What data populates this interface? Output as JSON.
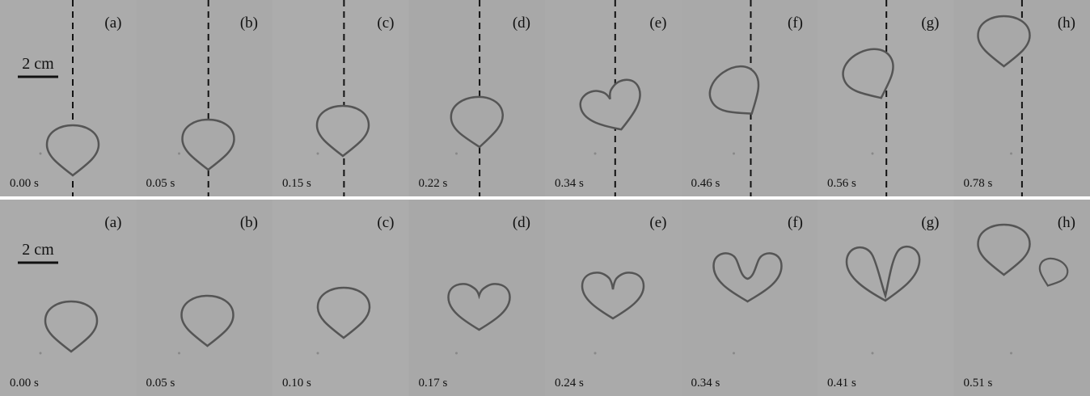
{
  "rows": [
    {
      "scale_label": "2 cm",
      "panels": [
        {
          "label": "(a)",
          "time": "0.00 s"
        },
        {
          "label": "(b)",
          "time": "0.05 s"
        },
        {
          "label": "(c)",
          "time": "0.15 s"
        },
        {
          "label": "(d)",
          "time": "0.22 s"
        },
        {
          "label": "(e)",
          "time": "0.34 s"
        },
        {
          "label": "(f)",
          "time": "0.46 s"
        },
        {
          "label": "(g)",
          "time": "0.56 s"
        },
        {
          "label": "(h)",
          "time": "0.78 s"
        }
      ]
    },
    {
      "scale_label": "2 cm",
      "panels": [
        {
          "label": "(a)",
          "time": "0.00 s"
        },
        {
          "label": "(b)",
          "time": "0.05 s"
        },
        {
          "label": "(c)",
          "time": "0.10 s"
        },
        {
          "label": "(d)",
          "time": "0.17 s"
        },
        {
          "label": "(e)",
          "time": "0.24 s"
        },
        {
          "label": "(f)",
          "time": "0.34 s"
        },
        {
          "label": "(g)",
          "time": "0.41 s"
        },
        {
          "label": "(h)",
          "time": "0.51 s"
        }
      ]
    }
  ]
}
